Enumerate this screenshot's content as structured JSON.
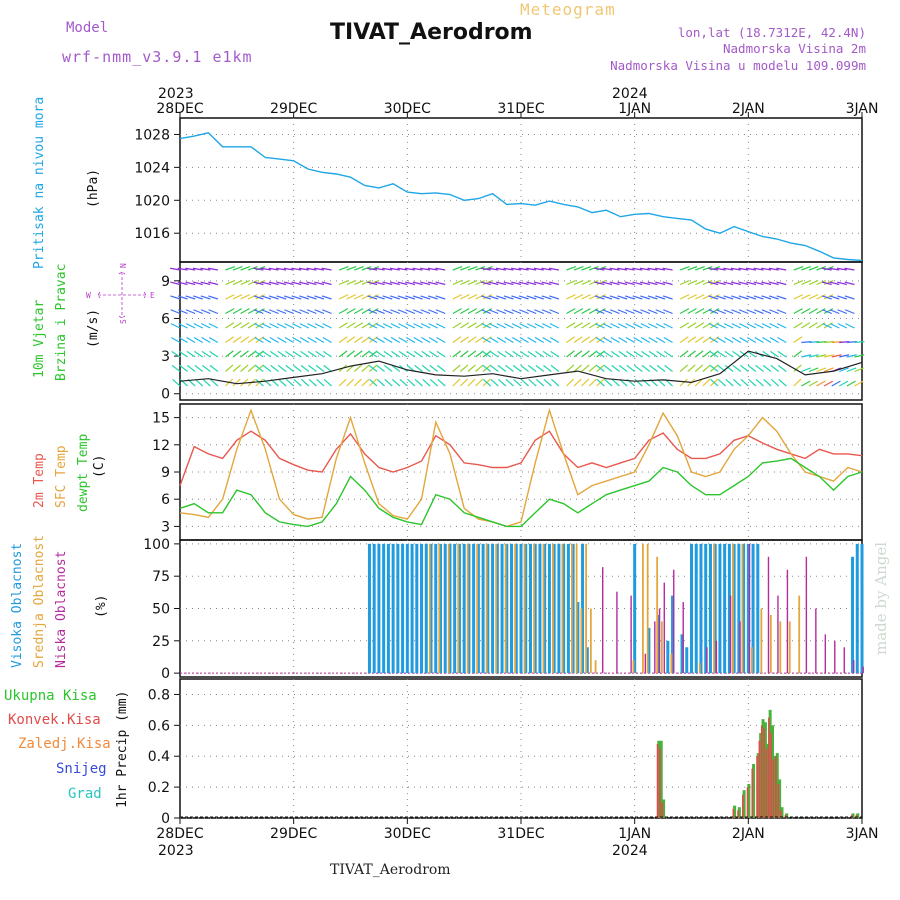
{
  "header": {
    "model_label": "Model",
    "model_version": "wrf-nmm_v3.9.1 e1km",
    "product": "Meteogram",
    "station": "TIVAT_Aerodrom",
    "coords": "lon,lat (18.7312E, 42.4N)",
    "elevation": "Nadmorska Visina 2m",
    "model_elevation": "Nadmorska Visina u modelu 109.099m"
  },
  "footer": {
    "station": "TIVAT_Aerodrom",
    "made_by": "made by Angel"
  },
  "colors": {
    "pressure": "#1ea6e6",
    "t2m": "#e8584f",
    "sfc": "#e3a63c",
    "dewpt": "#2dc42d",
    "high_cloud": "#1f9be0",
    "mid_cloud": "#e3a63c",
    "low_cloud": "#b52c9c",
    "total_precip": "#46b33a",
    "conv_precip": "#e24b4b",
    "frozen": "#f08a3c",
    "snow": "#3a49d9",
    "hail": "#28c6c0",
    "wind_purple": "#8a2bd8"
  },
  "time_axis": {
    "top_year_left": "2023",
    "top_year_mid": "2024",
    "bottom_year_left": "2023",
    "bottom_year_mid": "2024",
    "ticks": [
      "28DEC",
      "29DEC",
      "30DEC",
      "31DEC",
      "1JAN",
      "2JAN",
      "3JAN"
    ]
  },
  "chart_data": [
    {
      "type": "line",
      "panel": "pressure",
      "ylabel": "Pritisak na nivou mora",
      "unit": "(hPa)",
      "yticks": [
        1016,
        1020,
        1024,
        1028
      ],
      "ylim": [
        1012.5,
        1030
      ],
      "x_hours": [
        0,
        3,
        6,
        9,
        12,
        15,
        18,
        21,
        24,
        27,
        30,
        33,
        36,
        39,
        42,
        45,
        48,
        51,
        54,
        57,
        60,
        63,
        66,
        69,
        72,
        75,
        78,
        81,
        84,
        87,
        90,
        93,
        96,
        99,
        102,
        105,
        108,
        111,
        114,
        117,
        120,
        123,
        126,
        129,
        132,
        135,
        138,
        141,
        144
      ],
      "series": [
        {
          "name": "Pritisak na nivou mora",
          "values": [
            1027.5,
            1027.8,
            1028.2,
            1026.5,
            1026.5,
            1026.5,
            1025.2,
            1025.0,
            1024.8,
            1023.8,
            1023.4,
            1023.2,
            1022.8,
            1021.8,
            1021.5,
            1022.0,
            1021.0,
            1020.8,
            1020.9,
            1020.7,
            1020.0,
            1020.2,
            1020.8,
            1019.5,
            1019.6,
            1019.4,
            1019.9,
            1019.5,
            1019.2,
            1018.5,
            1018.8,
            1018.0,
            1018.3,
            1018.4,
            1018.0,
            1017.8,
            1017.6,
            1016.5,
            1016.0,
            1016.8,
            1016.2,
            1015.6,
            1015.3,
            1014.8,
            1014.5,
            1013.8,
            1013.0,
            1012.8,
            1012.7
          ]
        }
      ]
    },
    {
      "type": "line",
      "panel": "wind",
      "ylabel_1": "10m Vjetar",
      "ylabel_2": "Brzina i Pravac",
      "unit": "(m/s)",
      "compass": {
        "n": "N",
        "s": "S",
        "e": "E",
        "w": "W"
      },
      "yticks": [
        0,
        3,
        6,
        9
      ],
      "ylim": [
        -0.5,
        10.5
      ],
      "x_hours": [
        0,
        6,
        12,
        18,
        24,
        30,
        36,
        42,
        48,
        54,
        60,
        66,
        72,
        78,
        84,
        90,
        96,
        102,
        108,
        114,
        120,
        126,
        132,
        138,
        144
      ],
      "series": [
        {
          "name": "Brzina",
          "values": [
            1.0,
            1.2,
            0.8,
            1.0,
            1.3,
            1.6,
            2.2,
            2.6,
            1.9,
            1.5,
            1.4,
            1.6,
            1.2,
            1.5,
            1.8,
            1.2,
            1.0,
            1.1,
            0.9,
            1.6,
            3.4,
            2.8,
            1.5,
            1.8,
            2.5
          ]
        }
      ]
    },
    {
      "type": "line",
      "panel": "temperature",
      "ylabel_1": "2m Temp",
      "ylabel_2": "SFC Temp",
      "ylabel_3": "dewpt Temp",
      "unit": "(C)",
      "yticks": [
        3,
        6,
        9,
        12,
        15
      ],
      "ylim": [
        1.5,
        16.5
      ],
      "x_hours": [
        0,
        3,
        6,
        9,
        12,
        15,
        18,
        21,
        24,
        27,
        30,
        33,
        36,
        39,
        42,
        45,
        48,
        51,
        54,
        57,
        60,
        63,
        66,
        69,
        72,
        75,
        78,
        81,
        84,
        87,
        90,
        93,
        96,
        99,
        102,
        105,
        108,
        111,
        114,
        117,
        120,
        123,
        126,
        129,
        132,
        135,
        138,
        141,
        144
      ],
      "series": [
        {
          "name": "2m Temp",
          "values": [
            7.5,
            11.8,
            11.0,
            10.5,
            12.5,
            13.5,
            12.5,
            10.5,
            9.8,
            9.2,
            9.0,
            11.5,
            13.2,
            11.0,
            9.5,
            9.0,
            9.5,
            10.2,
            13.0,
            12.0,
            10.0,
            9.8,
            9.5,
            9.5,
            10.0,
            12.5,
            13.5,
            11.0,
            9.5,
            10.0,
            9.5,
            10.0,
            10.5,
            12.5,
            13.3,
            11.5,
            10.5,
            10.5,
            11.0,
            12.5,
            13.0,
            12.2,
            11.5,
            11.0,
            10.5,
            11.5,
            11.0,
            11.0,
            10.8
          ]
        },
        {
          "name": "SFC Temp",
          "values": [
            4.5,
            4.3,
            4.0,
            6.0,
            11.5,
            15.8,
            11.5,
            6.0,
            4.3,
            3.8,
            4.0,
            10.5,
            15.0,
            10.0,
            5.5,
            4.2,
            3.8,
            6.0,
            14.5,
            11.0,
            5.0,
            3.8,
            3.5,
            3.0,
            3.5,
            10.0,
            15.8,
            11.0,
            6.5,
            7.5,
            8.0,
            8.5,
            9.0,
            12.0,
            15.5,
            13.0,
            9.0,
            8.5,
            9.0,
            11.5,
            13.0,
            15.0,
            13.5,
            11.0,
            9.0,
            8.5,
            8.0,
            9.5,
            9.0
          ]
        },
        {
          "name": "dewpt Temp",
          "values": [
            5.0,
            5.5,
            4.5,
            4.5,
            7.0,
            6.5,
            4.5,
            3.5,
            3.2,
            3.0,
            3.5,
            5.5,
            8.5,
            7.0,
            5.0,
            4.0,
            3.5,
            3.2,
            6.5,
            6.0,
            4.5,
            4.0,
            3.5,
            3.0,
            3.0,
            4.5,
            6.0,
            5.5,
            4.5,
            5.5,
            6.5,
            7.0,
            7.5,
            8.0,
            9.5,
            9.0,
            7.5,
            6.5,
            6.5,
            7.5,
            8.5,
            10.0,
            10.2,
            10.5,
            9.5,
            8.5,
            7.0,
            8.5,
            9.0
          ]
        }
      ]
    },
    {
      "type": "bar",
      "panel": "clouds",
      "ylabel_1": "Visoka Oblacnost",
      "ylabel_2": "Srednja Oblacnost",
      "ylabel_3": "Niska Oblacnost",
      "unit": "(%)",
      "yticks": [
        0,
        25,
        50,
        75,
        100
      ],
      "ylim": [
        -3,
        103
      ],
      "series": [
        {
          "name": "Visoka Oblacnost",
          "x_hours": [
            40,
            41,
            42,
            43,
            44,
            45,
            46,
            47,
            48,
            49,
            50,
            51,
            52,
            53,
            54,
            55,
            56,
            57,
            58,
            59,
            60,
            61,
            62,
            63,
            64,
            65,
            66,
            67,
            68,
            69,
            70,
            71,
            72,
            73,
            74,
            75,
            76,
            77,
            78,
            79,
            80,
            81,
            82,
            83,
            84,
            85,
            86,
            96,
            99,
            101,
            103,
            104,
            106,
            107,
            108,
            109,
            110,
            111,
            112,
            113,
            114,
            115,
            116,
            117,
            118,
            119,
            120,
            121,
            122,
            142,
            143,
            144
          ],
          "values": [
            100,
            100,
            100,
            100,
            100,
            100,
            100,
            100,
            100,
            100,
            100,
            100,
            100,
            100,
            100,
            100,
            100,
            100,
            100,
            100,
            100,
            100,
            100,
            100,
            100,
            100,
            100,
            100,
            100,
            100,
            100,
            100,
            100,
            100,
            100,
            100,
            100,
            100,
            100,
            100,
            100,
            100,
            100,
            100,
            55,
            100,
            20,
            100,
            35,
            45,
            25,
            60,
            30,
            20,
            100,
            100,
            100,
            100,
            100,
            100,
            100,
            100,
            100,
            100,
            100,
            100,
            100,
            100,
            100,
            90,
            100,
            100
          ]
        },
        {
          "name": "Srednja Oblacnost",
          "x_hours": [
            53,
            55,
            57,
            59,
            61,
            63,
            65,
            67,
            69,
            71,
            73,
            75,
            77,
            79,
            81,
            83,
            84,
            85,
            86,
            87,
            88,
            96,
            98,
            99,
            101,
            102,
            104,
            110,
            113,
            117,
            119,
            121,
            123,
            125,
            127,
            129,
            131
          ],
          "values": [
            100,
            100,
            100,
            100,
            100,
            100,
            100,
            100,
            100,
            100,
            100,
            100,
            100,
            100,
            100,
            100,
            100,
            50,
            100,
            50,
            10,
            10,
            100,
            100,
            90,
            40,
            15,
            8,
            100,
            100,
            100,
            20,
            50,
            45,
            40,
            40,
            60
          ]
        },
        {
          "name": "Niska Oblacnost",
          "x_hours": [
            89,
            92,
            95,
            98,
            100,
            101,
            102,
            104,
            106,
            111,
            113,
            116,
            118,
            120,
            124,
            126,
            128,
            132,
            134,
            136,
            138,
            140,
            142,
            144
          ],
          "values": [
            82,
            63,
            60,
            15,
            40,
            50,
            70,
            80,
            55,
            20,
            25,
            60,
            40,
            100,
            90,
            60,
            80,
            90,
            50,
            30,
            25,
            20,
            10,
            5
          ]
        }
      ]
    },
    {
      "type": "bar",
      "panel": "precip",
      "ylabel": "1hr Precip (mm)",
      "legend": [
        "Ukupna Kisa",
        "Konvek.Kisa",
        "Zaledj.Kisa",
        "Snijeg",
        "Grad"
      ],
      "yticks": [
        0,
        0.2,
        0.4,
        0.6,
        0.8
      ],
      "ylim": [
        0,
        0.9
      ],
      "x_hours": [
        101,
        101.5,
        102,
        117,
        118,
        119,
        120,
        121,
        122,
        122.5,
        123,
        123.5,
        124,
        124.5,
        125,
        125.5,
        126,
        126.5,
        127,
        128,
        142,
        143
      ],
      "series": [
        {
          "name": "Ukupna Kisa",
          "values": [
            0.5,
            0.5,
            0.12,
            0.08,
            0.07,
            0.18,
            0.22,
            0.35,
            0.42,
            0.55,
            0.64,
            0.62,
            0.48,
            0.7,
            0.6,
            0.4,
            0.42,
            0.25,
            0.07,
            0.03,
            0.03,
            0.03
          ]
        },
        {
          "name": "Konvek.Kisa",
          "values": [
            0.48,
            0.45,
            0.1,
            0.06,
            0.05,
            0.15,
            0.2,
            0.32,
            0.4,
            0.5,
            0.6,
            0.58,
            0.45,
            0.65,
            0.55,
            0.38,
            0.4,
            0.22,
            0.05,
            0.02,
            0.02,
            0.02
          ]
        }
      ]
    }
  ]
}
